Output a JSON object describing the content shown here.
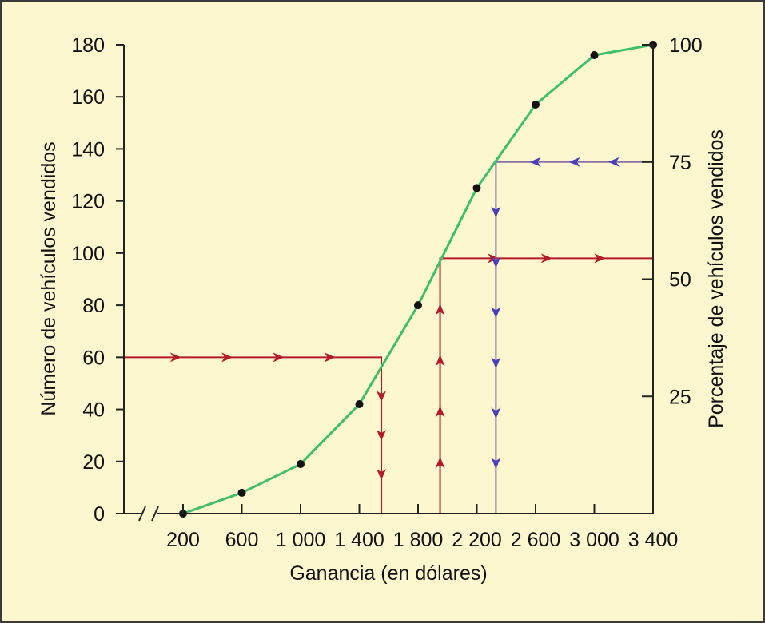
{
  "colors": {
    "background": "#fdf7cf",
    "curve": "#3dbf6b",
    "points": "#111111",
    "guide_red": "#b31b2a",
    "guide_blue": "#4a3fb8",
    "guide_blue_line": "#8c6fa8",
    "axis": "#222222"
  },
  "chart_data": {
    "type": "line",
    "title": "",
    "xlabel": "Ganancia (en dólares)",
    "ylabel": "Número de vehículos vendidos",
    "y2label": "Porcentaje de vehículos vendidos",
    "x_tick_labels": [
      "200",
      "600",
      "1 000",
      "1 400",
      "1 800",
      "2 200",
      "2 600",
      "3 000",
      "3 400"
    ],
    "x_ticks": [
      200,
      600,
      1000,
      1400,
      1800,
      2200,
      2600,
      3000,
      3400
    ],
    "y_ticks": [
      0,
      20,
      40,
      60,
      80,
      100,
      120,
      140,
      160,
      180
    ],
    "y2_ticks": [
      25,
      50,
      75,
      100
    ],
    "ylim": [
      0,
      180
    ],
    "y2lim": [
      0,
      100
    ],
    "xlim": [
      200,
      3400
    ],
    "axis_break": true,
    "series": [
      {
        "x": [
          200,
          600,
          1000,
          1400,
          1800,
          2200,
          2600,
          3000,
          3400
        ],
        "y": [
          0,
          8,
          19,
          42,
          80,
          125,
          157,
          176,
          180
        ]
      }
    ],
    "guides": [
      {
        "color": "red",
        "path": [
          [
            -200,
            60
          ],
          [
            1550,
            60
          ],
          [
            1550,
            0
          ]
        ]
      },
      {
        "color": "red",
        "path": [
          [
            1950,
            0
          ],
          [
            1950,
            98
          ],
          [
            3400,
            98
          ]
        ]
      },
      {
        "color": "blue",
        "path": [
          [
            3400,
            135
          ],
          [
            2330,
            135
          ],
          [
            2330,
            0
          ]
        ]
      }
    ]
  }
}
